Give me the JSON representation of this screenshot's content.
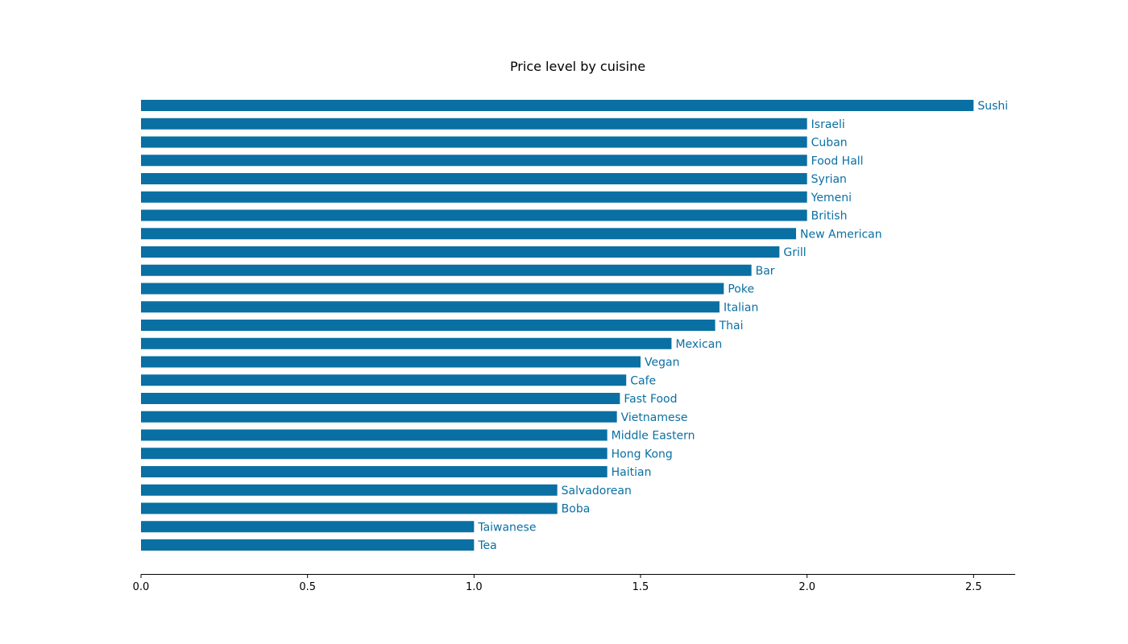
{
  "chart_data": {
    "type": "bar",
    "orientation": "horizontal",
    "title": "Price level by cuisine",
    "xlabel": "",
    "ylabel": "",
    "xlim": [
      0,
      2.625
    ],
    "xticks": [
      0.0,
      0.5,
      1.0,
      1.5,
      2.0,
      2.5
    ],
    "xtick_labels": [
      "0.0",
      "0.5",
      "1.0",
      "1.5",
      "2.0",
      "2.5"
    ],
    "grid": false,
    "bar_color": "#0a6fa3",
    "label_color": "#0a6fa3",
    "categories": [
      "Sushi",
      "Israeli",
      "Cuban",
      "Food Hall",
      "Syrian",
      "Yemeni",
      "British",
      "New American",
      "Grill",
      "Bar",
      "Poke",
      "Italian",
      "Thai",
      "Mexican",
      "Vegan",
      "Cafe",
      "Fast Food",
      "Vietnamese",
      "Middle Eastern",
      "Hong Kong",
      "Haitian",
      "Salvadorean",
      "Boba",
      "Taiwanese",
      "Tea"
    ],
    "values": [
      2.5,
      2.0,
      2.0,
      2.0,
      2.0,
      2.0,
      2.0,
      1.967,
      1.917,
      1.833,
      1.75,
      1.737,
      1.724,
      1.593,
      1.5,
      1.457,
      1.438,
      1.429,
      1.4,
      1.4,
      1.4,
      1.25,
      1.25,
      1.0,
      1.0
    ]
  }
}
